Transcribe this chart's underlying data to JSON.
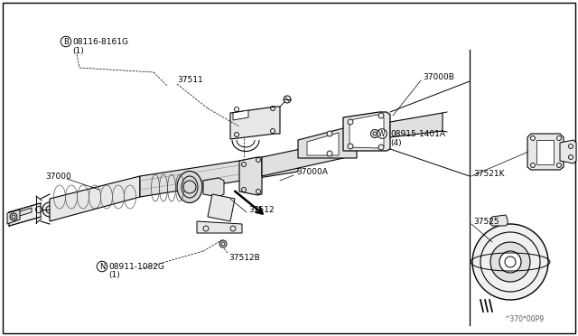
{
  "bg_color": "#ffffff",
  "line_color": "#000000",
  "labels": {
    "B_bolt": "B",
    "B_part": "08116-8161G",
    "B_qty": "(1)",
    "lbl_37511": "37511",
    "lbl_37000": "37000",
    "lbl_37512": "37512",
    "N_bolt": "N",
    "N_part": "08911-1082G",
    "N_qty": "(1)",
    "lbl_37512B": "37512B",
    "lbl_37000A": "37000A",
    "lbl_37000B": "37000B",
    "W_bolt": "W",
    "W_part": "08915-1401A",
    "W_qty": "(4)",
    "lbl_37521K": "37521K",
    "lbl_37525": "37525",
    "ref": "^370*00P9"
  }
}
